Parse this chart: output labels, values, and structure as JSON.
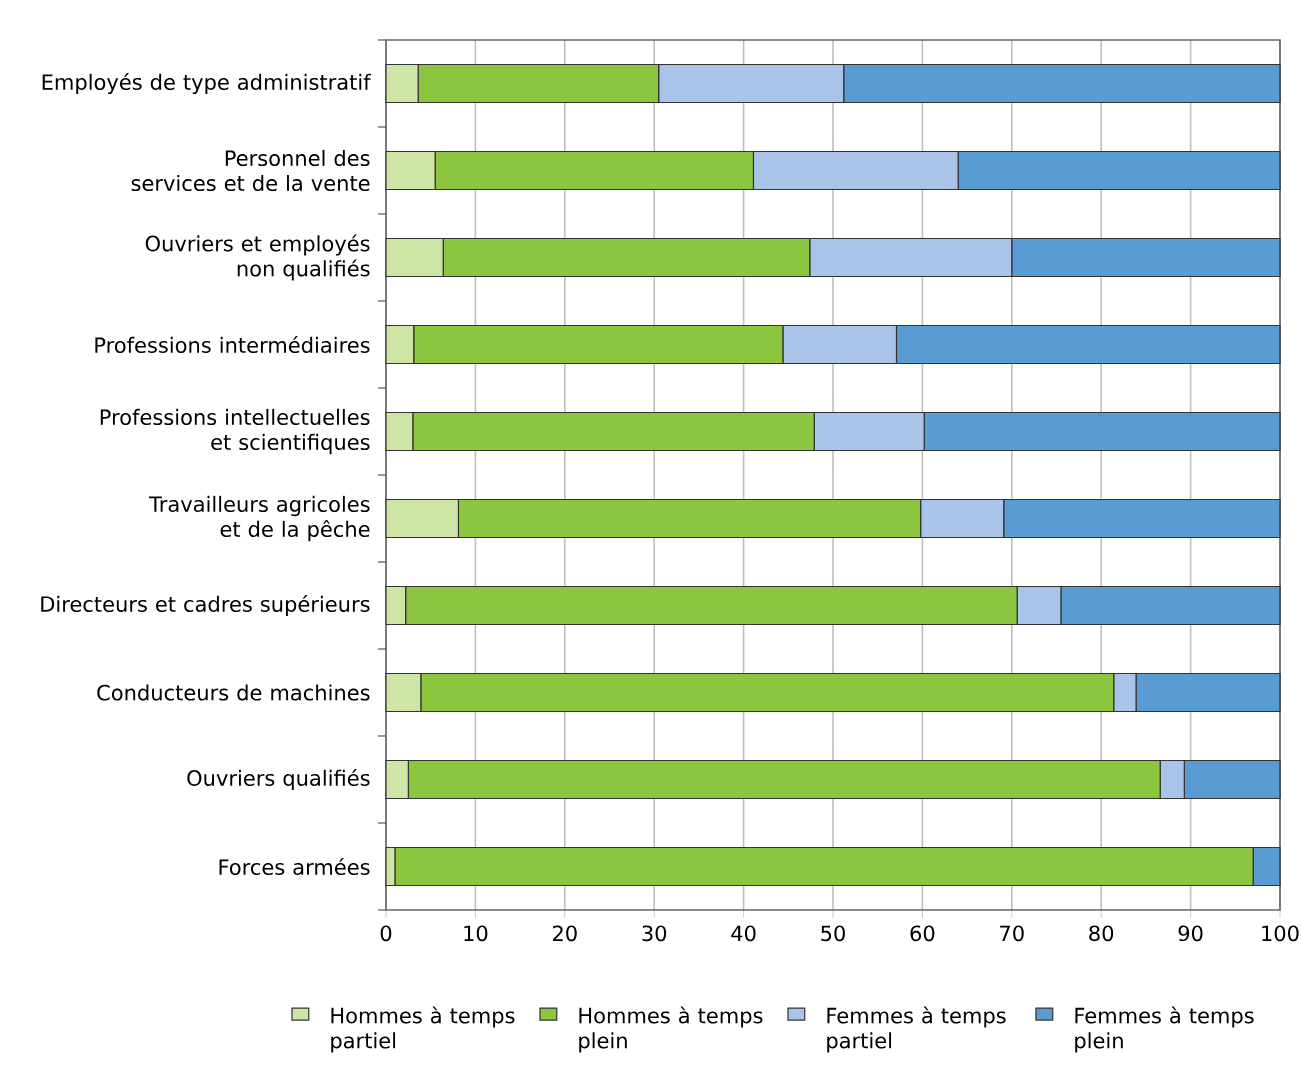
{
  "chart_data": {
    "type": "bar",
    "orientation": "horizontal",
    "stacked": true,
    "categories": [
      "Employés de type administratif",
      "Personnel des services et de la vente",
      "Ouvriers et employés non qualifiés",
      "Professions intermédiaires",
      "Professions intellectuelles et scientifiques",
      "Travailleurs agricoles et de la pêche",
      "Directeurs et cadres supérieurs",
      "Conducteurs de machines",
      "Ouvriers qualifiés",
      "Forces armées"
    ],
    "series": [
      {
        "name": "Hommes à temps partiel",
        "color": "#cde6a5",
        "values": [
          3.6,
          5.5,
          6.4,
          3.1,
          3.0,
          8.1,
          2.2,
          3.9,
          2.5,
          1.0
        ]
      },
      {
        "name": "Hommes à temps plein",
        "color": "#8cc63f",
        "values": [
          26.9,
          35.6,
          41.0,
          41.3,
          44.9,
          51.7,
          68.4,
          77.5,
          84.1,
          96.0
        ]
      },
      {
        "name": "Femmes à temps partiel",
        "color": "#a9c4e8",
        "values": [
          20.7,
          22.9,
          22.6,
          12.7,
          12.3,
          9.3,
          4.9,
          2.5,
          2.7,
          0
        ]
      },
      {
        "name": "Femmes à temps plein",
        "color": "#5a9bd4",
        "values": [
          48.8,
          36.0,
          30.0,
          42.9,
          39.8,
          30.9,
          24.5,
          16.1,
          10.7,
          3.0
        ]
      }
    ],
    "xlim": [
      0,
      100
    ],
    "xticks": [
      0,
      10,
      20,
      30,
      40,
      50,
      60,
      70,
      80,
      90,
      100
    ],
    "grid": "x",
    "legend": "bottom"
  }
}
